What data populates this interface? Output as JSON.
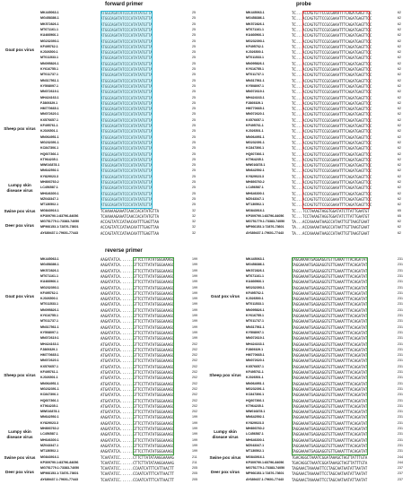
{
  "groups": [
    {
      "name": "Goat pox virus",
      "accessions": [
        "MK445063.1",
        "MG458386.1",
        "MK572826.1",
        "MT671161.1",
        "KU466966.1",
        "MG232393.1",
        "KF495762.1",
        "KJ026500.1",
        "MT011533.1",
        "MN095826.1",
        "KY616755.1",
        "MT011737.1",
        "MN317561.1",
        "KY508097.1",
        "MN072619.1"
      ]
    },
    {
      "name": "Sheep pox virus",
      "accessions": [
        "MH424163.1",
        "FJ869329.1",
        "HM770665.1",
        "MN072620.1",
        "KX576657.1",
        "KF495761.1",
        "KJ026501.1",
        "MN064951.1",
        "MG232391.1",
        "KC847306.1",
        "HQ607366.1",
        "KT964235.1",
        "MW016878.1"
      ]
    },
    {
      "name": "Lumpy skin disease virus",
      "accessions": [
        "MN642592.1",
        "KY829023.3",
        "MH893760.2",
        "LC456587.1",
        "MH646300.1",
        "MZ043347.1",
        "MT130502.1"
      ]
    },
    {
      "name": "Swine pox virus",
      "accessions": [
        "MG843916.1",
        "KP309790.1:83796-84056"
      ]
    },
    {
      "name": "Deer pox virus",
      "accessions": [
        "MG751779.1:73383-74050",
        "MF966153.1:72876-73601",
        "AY689437.1:79601-77443"
      ]
    }
  ],
  "panels": [
    {
      "title": "forward primer",
      "sequences": [
        [
          "ATGGCAGATATCCCATATATGTTA",
          "ATGGCAGATATCCCATATATGTTA",
          "ATGGCAGATATCCCATATATGTTA",
          "ATGGCAGATATCCCATATATGTTA",
          "ATGGCAGATATCCCATATATGTTA",
          "ATGGCAGATATCCCATATATGTTA",
          "ATGGCAGATATCCCATATATGTTA",
          "ATGGCAGATATCCCATATATGTTA",
          "ATGGCAGATATCCCATATATGTTA",
          "ATGGCAGATATCCCATATATGTTA",
          "ATGGCAGATATCCCATATATGTTA",
          "ATGGCAGATATCCCATATATGTTA",
          "ATGGCAGATATCCCATATATGTTA",
          "ATGGCAGATATCCCATATATGTTA",
          "ATGGCAGATATCCCATATATGTTA"
        ],
        [
          "ATGGCAGATATCCCATATATGTTA",
          "ATGGCAGATATCCCATATATGTTA",
          "ATGGCAGATATCCCATATATGTTA",
          "ATGGCAGATATCCCATATATGTTA",
          "ATGGCAGATATCCCATATATGTTA",
          "ATGGCAGATATCCCATATATGTTA",
          "ATGGCAGATATCCCATATATGTTA",
          "ATGGCAGATATCCCATATATGTTA",
          "ATGGCAGATATCCCATATATGTTA",
          "ATGGCAGATATCCCATATATGTTA",
          "ATGGCAGATATCCCATATATGTTA",
          "ATGGCAGATATCCCATATATGTTA",
          "ATGGCAGATATCCCATATATGTTA"
        ],
        [
          "ATGGCAGATATCCCATATATGTTA",
          "ATGGCAGATATCCCATATATGTTA",
          "ATGGCAGATATCCCATATATGTTA",
          "ATGGCAGATATCCCATATATGTTA",
          "ATGGCAGATATCCCATATATGTTA",
          "ATGGCAGATATCCCATATATGTTA",
          "ATGGCAGATATCCCATATATGTTA"
        ],
        [
          "TCAAAAAGAAATCAACCACATATGTTA",
          "TCAAAAAGAAATCAACCACATATGTTA"
        ],
        [
          "ACCAGTATCCATAACAATTTGAGTTAA",
          "ACCAGTATCCATAACAATTTGAGTTAA",
          "ACCAGTATCCATAACAATTTGAGTTAA"
        ]
      ],
      "ends": [
        [
          25,
          25,
          25,
          25,
          25,
          25,
          25,
          25,
          25,
          25,
          25,
          25,
          25,
          25,
          25
        ],
        [
          25,
          25,
          25,
          25,
          25,
          25,
          25,
          25,
          25,
          25,
          25,
          25,
          25
        ],
        [
          25,
          25,
          25,
          25,
          25,
          25,
          25
        ],
        [
          32,
          32
        ],
        [
          32,
          32,
          32
        ]
      ]
    },
    {
      "title": "probe",
      "sequences": [
        [
          "TC...ACCAGTGTTCCGCGAAATTTCAGATGAGTTCC",
          "TC...ACCAGTGTTCCGCGAAATTTCAGATGAGTTCC",
          "TC...ACCAGTGTTCCGCGAAATTTCAGATGAGTTCC",
          "TC...ACCAGTGTTCCGCGAAATTTCAGATGAGTTCC",
          "TC...ACCAGTGTTCCGCGAAATTTCAGATGAGTTCC",
          "TC...ACCAGTGTTCCGCGAAATTTCAGATGAGTTCC",
          "TC...ACCAGTGTTCCGCGAAATTTCAGATGAGTTCC",
          "TC...ACCAGTGTTCCGCGAAATTTCAGATGAGTTCC",
          "TC...ACCAGTGTTCCGCGAAATTTCAGATGAGTTCC",
          "TC...ACCAGTGTTCCGCGAAATTTCAGATGAGTTCC",
          "TC...ACCAGTGTTCCGCGAAATTTCAGATGAGTTCC",
          "TC...ACCAGTGTTCCGCGAAATTTCAGATGAGTTCC",
          "TC...ACCAGTGTTCCGCGAAATTTCAGATGAGTTCC",
          "TC...ACCAGTGTTCCGCGAAATTTCAGATGAGTTCC",
          "TC...ACCAGTGTTCCGCGAAATTTCAGATGAGTTCC"
        ],
        [
          "TC...ACCAGTGTTCCGCGAAATTTCAGATGAGTTCC",
          "TC...ACCAGTGTTCCGCGAAATTTCAGATGAGTTCC",
          "TC...ACCAGTGTTCCGCGAAATTTCAGATGAGTTCC",
          "TC...ACCAGTGTTCCGCGAAATTTCAGATGAGTTCC",
          "TC...ACCAGTGTTCCGCGAAATTTCAGATGAGTTCC",
          "TC...ACCAGTGTTCCGCGAAATTTCAGATGAGTTCC",
          "TC...ACCAGTGTTCCGCGAAATTTCAGATGAGTTCC",
          "TC...ACCAGTGTTCCGCGAAATTTCAGATGAGTTCC",
          "TC...ACCAGTGTTCCGCGAAATTTCAGATGAGTTCC",
          "TC...ACCAGTGTTCCGCGAAATTTCAGATGAGTTCC",
          "TC...ACCAGTGTTCCGCGAAATTTCAGATGAGTTCC",
          "TC...ACCAGTGTTCCGCGAAATTTCAGATGAGTTCC",
          "TC...ACCAGTGTTCCGCGAAATTTCAGATGAGTTCC"
        ],
        [
          "TC...ACCAGTGTTCCGCGAAATTTCAGATGAGTTCC",
          "TC...ACCAGTGTTCCGCGAAATTTCAGATGAGTTCC",
          "TC...ACCAGTGTTCCGCGAAATTTCAGATGAGTTCC",
          "TC...ACCAGTGTTCCGCGAAATTTCAGATGAGTTCC",
          "TC...ACCAGTGTTCCGCGAAATTTCAGATGAGTTCC",
          "TC...ACCAGTGTTCCGCGAAATTTCAGATGAGTTCC",
          "TC...ACCAGTGTTCCGCGAAATTTCAGATGAGTTCC"
        ],
        [
          "TC...TCCTAAAGTAGGTGGATATCTTATTGAATGT",
          "TC...TCCTAAAGTAGGTGGATATCTTATTGAATGT"
        ],
        [
          "TA...ACCAAAAATAAGCCATAATTGTTAAGTGAAT",
          "TA...ACCAAAAATAAGCCATAATTGTTAAGTGAAT",
          "TA...ACCAAAAATAAGCCATAATTGTTAAGTGAAT"
        ]
      ],
      "ends": [
        [
          62,
          62,
          62,
          62,
          62,
          62,
          62,
          62,
          62,
          62,
          62,
          62,
          62,
          62,
          62
        ],
        [
          62,
          62,
          62,
          62,
          62,
          62,
          62,
          62,
          62,
          62,
          62,
          62,
          62
        ],
        [
          62,
          62,
          62,
          62,
          62,
          62,
          62
        ],
        [
          65,
          65
        ],
        [
          62,
          62,
          62
        ]
      ]
    },
    {
      "title": "reverse primer",
      "sequences": [
        [
          "AAGATATCA......GTTCCTTATATGGGAAAGG",
          "AAGATATCA......GTTCCTTATATGGGAAAGG",
          "AAGATATCA......GTTCCTTATATGGGAAAGG",
          "AAGATATCA......GTTCCTTATATGGGAAAGG",
          "AAGATATCA......GTTCCTTATATGGGAAAGG",
          "AAGATATCA......GTTCCTTATATGGGAAAGG",
          "AAGATATCA......GTTCCTTATATGGGAAAGG",
          "AAGATATCA......GTTCCTTATATGGGAAAGG",
          "AAGATATCA......GTTCCTTATATGGGAAAGG",
          "AAGATATCA......GTTCCTTATATGGGAAAGG",
          "AAGATATCA......GTTCCTTATATGGGAAAGG",
          "AAGATATCA......GTTCCTTATATGGGAAAGG",
          "AAGATATCA......GTTCCTTATATGGGAAAGG",
          "AAGATATCA......GTTCCTTATATGGGAAAGG",
          "AAGATATCA......GTTCCTTATATGGGAAAGG"
        ],
        [
          "ATGATATCA......GTTCCTTATATGGGAAAGG",
          "ATGATATCA......GTTCCTTATATGGGAAAGG",
          "ATGATATCA......GTTCCTTATATGGGAAAGG",
          "ATGATATCA......GTTCCTTATATGGGAAAGG",
          "ATGATATCA......GTTCCTTATATGGGAAAGG",
          "ATGATATCA......GTTCCTTATATGGGAAAGG",
          "ATGATATCA......GTTCCTTATATGGGAAAGG",
          "ATGATATCA......GTTCCTTATATGGGAAAGG",
          "ATGATATCA......GTTCCTTATATGGGAAAGG",
          "ATGATATCA......GTTCCTTATATGGGAAAGG",
          "ATGATATCA......GTTCCTTATATGGGAAAGG",
          "ATGATATCA......GTTCCTTATATGGGAAAGG",
          "ATGATATCA......GTTCCTTATATGGGAAAGG"
        ],
        [
          "AAGATATCA......GTTCCTTATATGGGAAAGG",
          "AAGATATCA......GTTCCTTATATGGGAAAGG",
          "AAGATATCA......GTTCCTTATATGGGAAAGG",
          "AAGATATCA......GTTCCTTATATGGGAAAGG",
          "AAGATATCA......GTTCCTTATATGGGAAAGG",
          "AAGATATCA......GTTCCTTATATGGGAAAGG",
          "AAGATATCA......GTTCCTTATATGGGAAAGG"
        ],
        [
          "TCAATATCC......CTTCTTATATAAGGAAAAG",
          "TCAATATCC......CTTCTTATATAAGGAAAAG"
        ],
        [
          "TCAATATCC......CCAATCATTTCATTAACTT",
          "TCAATATCC......CCAATCATTTCATTAACTT",
          "TCAATATCC......CCAATCATTTCATTAACTT"
        ]
      ],
      "ends": [
        [
          199,
          199,
          199,
          199,
          199,
          199,
          199,
          199,
          199,
          199,
          199,
          199,
          199,
          199,
          199
        ],
        [
          202,
          202,
          202,
          202,
          202,
          202,
          202,
          202,
          202,
          202,
          202,
          202,
          202
        ],
        [
          199,
          199,
          199,
          199,
          199,
          199,
          199
        ],
        [
          211,
          211
        ],
        [
          205,
          205,
          205
        ]
      ]
    },
    {
      "sequences": [
        [
          "TAGGAAAATGAGGAGGTGTTGAAATTTACAGATAT",
          "TAGGAAAATGAGGAGGTGTTGAAATTTACAGATAT",
          "TAGGAAAATGAGGAGGTGTTGAAATTTACAGATAT",
          "TAGGAAAATGAGGAGGTGTTGAAATTTACAGATAT",
          "TAGGAAAATGAGGAGGTGTTGAAATTTACAGATAT",
          "TAGGAAAATGAGGAGGTGTTGAAATTTACAGATAT",
          "TAGGAAAATGAGGAGGTGTTGAAATTTACAGATAT",
          "TAGGAAAATGAGGAGGTGTTGAAATTTACAGATAT",
          "TAGGAAAATGAGGAGGTGTTGAAATTTACAGATAT",
          "TAGGAAAATGAGGAGGTGTTGAAATTTACAGATAT",
          "TAGGAAAATGAGGAGGTGTTGAAATTTACAGATAT",
          "TAGGAAAATGAGGAGGTGTTGAAATTTACAGATAT",
          "TAGGAAAATGAGGAGGTGTTGAAATTTACAGATAT",
          "TAGGAAAATGAGGAGGTGTTGAAATTTACAGATAT",
          "TAGGAAAATGAGGAGGTGTTGAAATTTACAGATAT"
        ],
        [
          "TAGGAAAATGAGGAGGTGTTGAAATTTACAGATAT",
          "TAGGAAAATGAGGAGGTGTTGAAATTTACAGATAT",
          "TAGGAAAATGAGGAGGTGTTGAAATTTACAGATAT",
          "TAGGAAAATGAGGAGGTGTTGAAATTTACAGATAT",
          "TAGGAAAATGAGGAGGTGTTGAAATTTACAGATAT",
          "TAGGAAAATGAGGAGGTGTTGAAATTTACAGATAT",
          "TAGGAAAATGAGGAGGTGTTGAAATTTACAGATAT",
          "TAGGAAAATGAGGAGGTGTTGAAATTTACAGATAT",
          "TAGGAAAATGAGGAGGTGTTGAAATTTACAGATAT",
          "TAGGAAAATGAGGAGGTGTTGAAATTTACAGATAT",
          "TAGGAAAATGAGGAGGTGTTGAAATTTACAGATAT",
          "TAGGAAAATGAGGAGGTGTTGAAATTTACAGATAT",
          "TAGGAAAATGAGGAGGTGTTGAAATTTACAGATAT"
        ],
        [
          "TAGGAAAATGAGGAGGTGTTGAAATTTACAGATAT",
          "TAGGAAAATGAGGAGGTGTTGAAATTTACAGATAT",
          "TAGGAAAATGAGGAGGTGTTGAAATTTACAGATAT",
          "TAGGAAAATGAGGAGGTGTTGAAATTTACAGATAT",
          "TAGGAAAATGAGGAGGTGTTGAAATTTACAGATAT",
          "TAGGAAAATGAGGAGGTGTTGAAATTTACAGATAT",
          "TAGGAAAATGAGGAGGTGTTGAAATTTACAGATAT"
        ],
        [
          "TGACAGGCTAAATCGGATAAAGCTAGTTATTTGTA",
          "TGACAGGCTAAATCGGATAAAGCTAGTTATTTGTA"
        ],
        [
          "TAGAAACTAAAAATTCCTAGCAATAATATTAATAT",
          "TAGAAACTAAAAATTCCTAGCAATAATATTAATAT",
          "TAGAAACTAAAAATTCCTAGCAATAATATTAATAT"
        ]
      ],
      "ends": [
        [
          231,
          231,
          231,
          231,
          231,
          231,
          231,
          231,
          231,
          231,
          231,
          231,
          231,
          231,
          231
        ],
        [
          231,
          231,
          231,
          231,
          231,
          231,
          231,
          231,
          231,
          231,
          231,
          231,
          231
        ],
        [
          231,
          231,
          231,
          231,
          231,
          231,
          231
        ],
        [
          244,
          244
        ],
        [
          237,
          237,
          237
        ]
      ]
    }
  ]
}
